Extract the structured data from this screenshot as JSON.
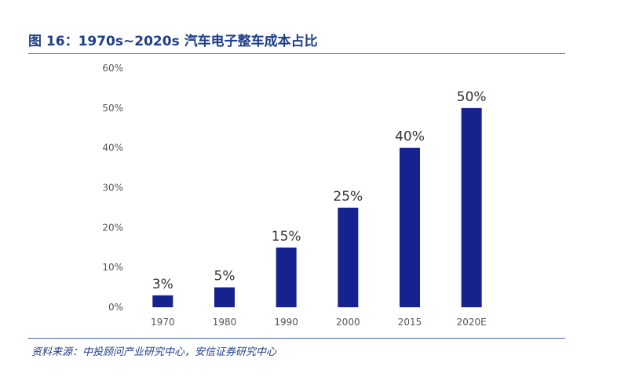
{
  "title": "图 16：1970s~2020s 汽车电子整车成本占比",
  "source": "资料来源：中投顾问产业研究中心，安信证券研究中心",
  "colors": {
    "bar": "#16238f",
    "axis_text": "#555555",
    "label_text": "#333333",
    "rule": "#4a6aa8",
    "title": "#1f3f8a"
  },
  "chart_data": {
    "type": "bar",
    "title": "",
    "xlabel": "",
    "ylabel": "",
    "categories": [
      "1970",
      "1980",
      "1990",
      "2000",
      "2015",
      "2020E"
    ],
    "values": [
      3,
      5,
      15,
      25,
      40,
      50
    ],
    "data_labels": [
      "3%",
      "5%",
      "15%",
      "25%",
      "40%",
      "50%"
    ],
    "ylim": [
      0,
      60
    ],
    "yticks": [
      0,
      10,
      20,
      30,
      40,
      50,
      60
    ],
    "ytick_labels": [
      "0%",
      "10%",
      "20%",
      "30%",
      "40%",
      "50%",
      "60%"
    ],
    "grid": false,
    "legend": "none"
  }
}
